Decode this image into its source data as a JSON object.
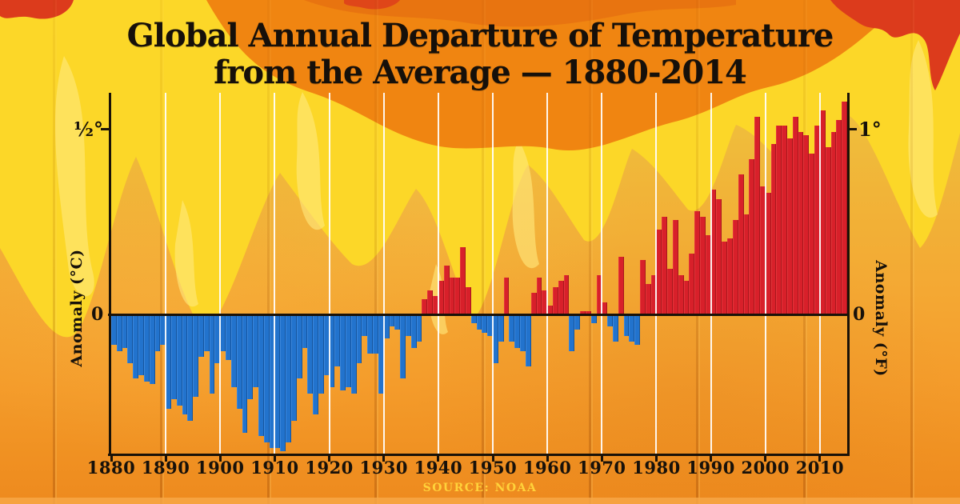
{
  "title": {
    "line1": "Global Annual Departure of Temperature",
    "line2": "from the Average — 1880-2014"
  },
  "source": "SOURCE: NOAA",
  "left_axis": {
    "label": "Anomaly (°C)",
    "tick_top": "½°",
    "tick_zero": "0"
  },
  "right_axis": {
    "label": "Anomaly (°F)",
    "tick_top": "1°",
    "tick_zero": "0"
  },
  "colors": {
    "positive_bar": "#d8202a",
    "negative_bar": "#2273cd",
    "axis": "#1a1208",
    "gridline": "#ffffff",
    "background_top": "#f2ce41",
    "background_bottom": "#ee8a1e",
    "flame_yellow": "#fcd728",
    "flame_highlight": "#ffe87d",
    "flame_orange": "#f08511",
    "flame_red": "#dc3b1c",
    "title_text": "#16100a",
    "source_text": "#ffd23a"
  },
  "chart_data": {
    "type": "bar",
    "title": "Global Annual Departure of Temperature from the Average — 1880-2014",
    "xlabel": "",
    "ylabel_left": "Anomaly (°C)",
    "ylabel_right": "Anomaly (°F)",
    "unit": "°C",
    "baseline": 0,
    "ylim": [
      -0.55,
      0.75
    ],
    "y_tick_left_half_degree_C": 0.5,
    "y_tick_right_one_degree_F": 1.0,
    "x_start": 1880,
    "x_end": 2014,
    "x_ticks": [
      1880,
      1890,
      1900,
      1910,
      1920,
      1930,
      1940,
      1950,
      1960,
      1970,
      1980,
      1990,
      2000,
      2010
    ],
    "gridlines_at": [
      1890,
      1900,
      1910,
      1920,
      1930,
      1940,
      1950,
      1960,
      1970,
      1980,
      1990,
      2000,
      2010
    ],
    "legend": "red = above average, blue = below average",
    "values": [
      -0.1,
      -0.12,
      -0.11,
      -0.16,
      -0.21,
      -0.2,
      -0.22,
      -0.23,
      -0.12,
      -0.1,
      -0.31,
      -0.28,
      -0.3,
      -0.33,
      -0.35,
      -0.27,
      -0.14,
      -0.12,
      -0.26,
      -0.16,
      -0.12,
      -0.15,
      -0.24,
      -0.31,
      -0.39,
      -0.28,
      -0.24,
      -0.4,
      -0.42,
      -0.44,
      -0.44,
      -0.45,
      -0.42,
      -0.35,
      -0.21,
      -0.11,
      -0.26,
      -0.33,
      -0.26,
      -0.2,
      -0.24,
      -0.17,
      -0.25,
      -0.24,
      -0.26,
      -0.16,
      -0.07,
      -0.13,
      -0.13,
      -0.26,
      -0.08,
      -0.04,
      -0.05,
      -0.21,
      -0.07,
      -0.11,
      -0.09,
      0.05,
      0.08,
      0.06,
      0.11,
      0.16,
      0.12,
      0.12,
      0.22,
      0.09,
      -0.03,
      -0.05,
      -0.06,
      -0.07,
      -0.16,
      -0.09,
      0.12,
      -0.09,
      -0.11,
      -0.12,
      -0.17,
      0.07,
      0.12,
      0.08,
      0.03,
      0.09,
      0.11,
      0.13,
      -0.12,
      -0.05,
      0.01,
      0.01,
      -0.03,
      0.13,
      0.04,
      -0.04,
      -0.09,
      0.19,
      -0.07,
      -0.09,
      -0.1,
      0.18,
      0.1,
      0.13,
      0.28,
      0.32,
      0.15,
      0.31,
      0.13,
      0.11,
      0.2,
      0.34,
      0.32,
      0.26,
      0.41,
      0.38,
      0.24,
      0.25,
      0.31,
      0.46,
      0.33,
      0.51,
      0.65,
      0.42,
      0.4,
      0.56,
      0.62,
      0.62,
      0.58,
      0.65,
      0.6,
      0.59,
      0.53,
      0.62,
      0.67,
      0.55,
      0.6,
      0.64,
      0.7
    ]
  }
}
